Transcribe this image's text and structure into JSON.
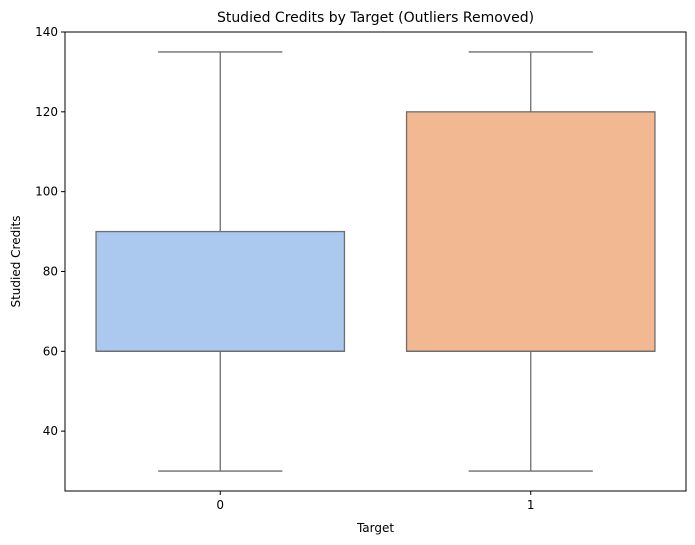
{
  "chart_data": {
    "type": "boxplot",
    "title": "Studied Credits by Target (Outliers Removed)",
    "xlabel": "Target",
    "ylabel": "Studied Credits",
    "categories": [
      "0",
      "1"
    ],
    "ylim": [
      25,
      140
    ],
    "yticks": [
      40,
      60,
      80,
      100,
      120,
      140
    ],
    "grid": false,
    "legend": "none",
    "boxes": [
      {
        "category": "0",
        "whisker_low": 30,
        "q1": 60,
        "median": 60,
        "q3": 90,
        "whisker_high": 135,
        "color": "#abc9ee"
      },
      {
        "category": "1",
        "whisker_low": 30,
        "q1": 60,
        "median": 60,
        "q3": 120,
        "whisker_high": 135,
        "color": "#f1b892"
      }
    ],
    "line_color": "#6e6e6e"
  }
}
